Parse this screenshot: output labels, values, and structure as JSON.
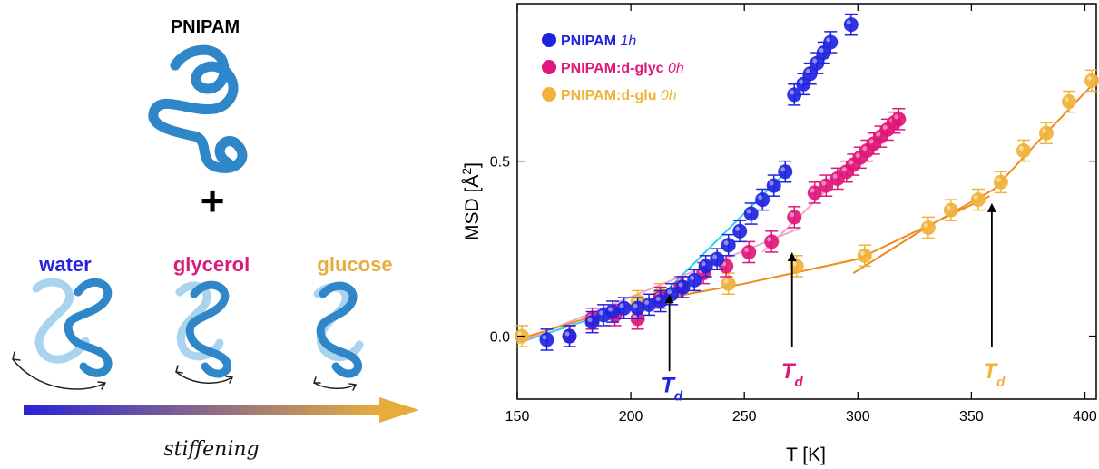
{
  "left_panel": {
    "polymer_label": "PNIPAM",
    "plus_sign": "+",
    "solvents": [
      {
        "label": "water",
        "color": "#2a23d9"
      },
      {
        "label": "glycerol",
        "color": "#d81b7b"
      },
      {
        "label": "glucose",
        "color": "#e6ad3a"
      }
    ],
    "gradient_arrow": {
      "from_color": "#2a23d9",
      "to_color": "#e6ad3a"
    },
    "stiffening_label": "stiffening",
    "coil_color": "#2f86c8"
  },
  "chart_data": {
    "type": "scatter",
    "xlabel": "T [K]",
    "ylabel": "MSD [Å",
    "ylabel_sup": "2",
    "ylabel_close": "]",
    "xlim": [
      150,
      405
    ],
    "ylim": [
      -0.18,
      0.95
    ],
    "xticks": [
      150,
      200,
      250,
      300,
      350,
      400
    ],
    "xtick_labels": [
      "150",
      "200",
      "250",
      "300",
      "350",
      "400"
    ],
    "yticks": [
      0.0,
      0.5
    ],
    "ytick_labels": [
      "0.0",
      "0.5"
    ],
    "grid": false,
    "legend_position": "top-left",
    "series": [
      {
        "name": "PNIPAM",
        "name_suffix": "1h",
        "color": "#1f23e0",
        "fit_color": "#2dd0ee",
        "x": [
          163,
          173,
          183,
          188,
          192,
          197,
          203,
          208,
          213,
          218,
          223,
          228,
          233,
          238,
          243,
          248,
          253,
          258,
          263,
          268,
          272,
          276,
          279,
          282,
          285,
          288,
          297
        ],
        "y": [
          -0.01,
          0.0,
          0.04,
          0.06,
          0.07,
          0.08,
          0.08,
          0.09,
          0.1,
          0.12,
          0.14,
          0.16,
          0.2,
          0.22,
          0.26,
          0.3,
          0.35,
          0.39,
          0.43,
          0.47,
          0.69,
          0.72,
          0.75,
          0.78,
          0.81,
          0.84,
          0.89
        ],
        "err": [
          0.03,
          0.03,
          0.03,
          0.03,
          0.03,
          0.03,
          0.03,
          0.03,
          0.03,
          0.03,
          0.03,
          0.03,
          0.03,
          0.03,
          0.03,
          0.03,
          0.03,
          0.03,
          0.03,
          0.03,
          0.03,
          0.03,
          0.03,
          0.03,
          0.03,
          0.03,
          0.03
        ],
        "fit_low": {
          "x": [
            150,
            225
          ],
          "y": [
            -0.02,
            0.14
          ]
        },
        "fit_high": {
          "x": [
            208,
            270
          ],
          "y": [
            0.08,
            0.48
          ]
        }
      },
      {
        "name": "PNIPAM:d-glyc",
        "name_suffix": "0h",
        "color": "#e0167b",
        "fit_color": "#f4a6c6",
        "x": [
          173,
          183,
          193,
          203,
          213,
          222,
          232,
          242,
          252,
          262,
          272,
          281,
          286,
          291,
          295,
          298,
          301,
          304,
          307,
          310,
          313,
          316,
          318
        ],
        "y": [
          0.0,
          0.05,
          0.06,
          0.05,
          0.11,
          0.14,
          0.18,
          0.2,
          0.24,
          0.27,
          0.34,
          0.41,
          0.43,
          0.45,
          0.47,
          0.49,
          0.51,
          0.53,
          0.55,
          0.57,
          0.59,
          0.61,
          0.62
        ],
        "err": [
          0.03,
          0.03,
          0.03,
          0.03,
          0.03,
          0.03,
          0.03,
          0.03,
          0.03,
          0.03,
          0.03,
          0.03,
          0.03,
          0.03,
          0.03,
          0.03,
          0.03,
          0.03,
          0.03,
          0.03,
          0.03,
          0.03,
          0.03
        ],
        "fit_low": {
          "x": [
            150,
            275
          ],
          "y": [
            -0.02,
            0.31
          ]
        },
        "fit_high": {
          "x": [
            258,
            320
          ],
          "y": [
            0.24,
            0.63
          ]
        }
      },
      {
        "name": "PNIPAM:d-glu",
        "name_suffix": "0h",
        "color": "#f0b23a",
        "fit_color": "#ef8a1c",
        "x": [
          152,
          183,
          203,
          213,
          223,
          243,
          273,
          303,
          331,
          341,
          353,
          363,
          373,
          383,
          393,
          403
        ],
        "y": [
          0.0,
          0.05,
          0.1,
          0.12,
          0.14,
          0.15,
          0.2,
          0.23,
          0.31,
          0.36,
          0.39,
          0.44,
          0.53,
          0.58,
          0.67,
          0.73
        ],
        "err": [
          0.03,
          0.03,
          0.03,
          0.03,
          0.03,
          0.03,
          0.03,
          0.03,
          0.03,
          0.03,
          0.03,
          0.03,
          0.03,
          0.03,
          0.03,
          0.03
        ],
        "fit_low": {
          "x": [
            150,
            200,
            250,
            300,
            358
          ],
          "y": [
            -0.01,
            0.09,
            0.15,
            0.22,
            0.4
          ]
        },
        "fit_high": {
          "x": [
            298,
            330,
            360,
            380,
            405
          ],
          "y": [
            0.18,
            0.31,
            0.42,
            0.56,
            0.73
          ]
        }
      }
    ],
    "annotations": [
      {
        "text": "T",
        "subscript": "d",
        "arrow_x": 217,
        "arrow_from_y": -0.1,
        "arrow_to_y": 0.12,
        "label_x": 218,
        "label_y": -0.16,
        "color": "#1f23e0"
      },
      {
        "text": "T",
        "subscript": "d",
        "arrow_x": 271,
        "arrow_from_y": -0.03,
        "arrow_to_y": 0.24,
        "label_x": 271,
        "label_y": -0.12,
        "color": "#e0167b"
      },
      {
        "text": "T",
        "subscript": "d",
        "arrow_x": 359,
        "arrow_from_y": -0.03,
        "arrow_to_y": 0.38,
        "label_x": 360,
        "label_y": -0.12,
        "color": "#f0b23a"
      }
    ]
  }
}
